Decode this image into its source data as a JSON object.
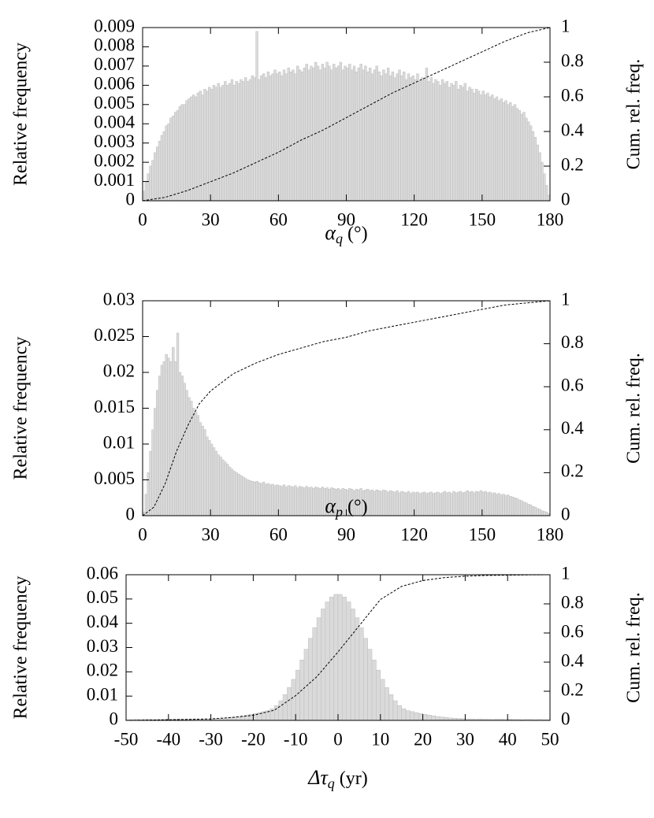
{
  "chart_data": [
    {
      "type": "histogram",
      "ylabel": "Relative frequency",
      "y2label": "Cum. rel. freq.",
      "xlabel": {
        "symbol": "α",
        "sub": "q",
        "unit": "(°)"
      },
      "color": "#dadada",
      "edge_color": "#bdbdbd",
      "line_color": "#000000",
      "xlim": [
        0,
        180
      ],
      "xticks": [
        0,
        30,
        60,
        90,
        120,
        150,
        180
      ],
      "ylim": [
        0,
        0.009
      ],
      "yticks": [
        0,
        0.001,
        0.002,
        0.003,
        0.004,
        0.005,
        0.006,
        0.007,
        0.008,
        0.009
      ],
      "y2lim": [
        0,
        1
      ],
      "y2ticks": [
        0,
        0.2,
        0.4,
        0.6,
        0.8,
        1
      ],
      "bins": [
        0,
        1,
        2,
        3,
        4,
        5,
        6,
        7,
        8,
        9,
        10,
        11,
        12,
        13,
        14,
        15,
        16,
        17,
        18,
        19,
        20,
        21,
        22,
        23,
        24,
        25,
        26,
        27,
        28,
        29,
        30,
        31,
        32,
        33,
        34,
        35,
        36,
        37,
        38,
        39,
        40,
        41,
        42,
        43,
        44,
        45,
        46,
        47,
        48,
        49,
        50,
        51,
        52,
        53,
        54,
        55,
        56,
        57,
        58,
        59,
        60,
        61,
        62,
        63,
        64,
        65,
        66,
        67,
        68,
        69,
        70,
        71,
        72,
        73,
        74,
        75,
        76,
        77,
        78,
        79,
        80,
        81,
        82,
        83,
        84,
        85,
        86,
        87,
        88,
        89,
        90,
        91,
        92,
        93,
        94,
        95,
        96,
        97,
        98,
        99,
        100,
        101,
        102,
        103,
        104,
        105,
        106,
        107,
        108,
        109,
        110,
        111,
        112,
        113,
        114,
        115,
        116,
        117,
        118,
        119,
        120,
        121,
        122,
        123,
        124,
        125,
        126,
        127,
        128,
        129,
        130,
        131,
        132,
        133,
        134,
        135,
        136,
        137,
        138,
        139,
        140,
        141,
        142,
        143,
        144,
        145,
        146,
        147,
        148,
        149,
        150,
        151,
        152,
        153,
        154,
        155,
        156,
        157,
        158,
        159,
        160,
        161,
        162,
        163,
        164,
        165,
        166,
        167,
        168,
        169,
        170,
        171,
        172,
        173,
        174,
        175,
        176,
        177,
        178,
        179,
        180
      ],
      "values": [
        0.0005,
        0.001,
        0.0014,
        0.0018,
        0.0021,
        0.0025,
        0.0028,
        0.0031,
        0.0034,
        0.0036,
        0.0039,
        0.004,
        0.0043,
        0.0044,
        0.0046,
        0.0047,
        0.0049,
        0.005,
        0.005,
        0.0052,
        0.0053,
        0.0054,
        0.0055,
        0.0054,
        0.0056,
        0.0057,
        0.0055,
        0.0058,
        0.0057,
        0.0059,
        0.0058,
        0.006,
        0.0059,
        0.0061,
        0.0059,
        0.006,
        0.0062,
        0.006,
        0.0061,
        0.0063,
        0.006,
        0.0062,
        0.0061,
        0.0063,
        0.0062,
        0.0064,
        0.0062,
        0.0063,
        0.0065,
        0.0064,
        0.0088,
        0.0063,
        0.0065,
        0.0066,
        0.0064,
        0.0067,
        0.0065,
        0.0066,
        0.0068,
        0.0066,
        0.0067,
        0.0065,
        0.0068,
        0.0066,
        0.0069,
        0.0067,
        0.0068,
        0.0066,
        0.007,
        0.0068,
        0.0067,
        0.0069,
        0.0071,
        0.0068,
        0.007,
        0.0069,
        0.0072,
        0.007,
        0.0068,
        0.0071,
        0.0069,
        0.0072,
        0.007,
        0.0068,
        0.0071,
        0.0069,
        0.007,
        0.0072,
        0.0068,
        0.007,
        0.0069,
        0.0071,
        0.0068,
        0.007,
        0.0067,
        0.0069,
        0.0071,
        0.0068,
        0.007,
        0.0067,
        0.0069,
        0.0066,
        0.0068,
        0.007,
        0.0067,
        0.0065,
        0.0068,
        0.0066,
        0.0069,
        0.0065,
        0.0067,
        0.0064,
        0.0066,
        0.0068,
        0.0065,
        0.0067,
        0.0063,
        0.0066,
        0.0064,
        0.0065,
        0.0063,
        0.0066,
        0.0062,
        0.0064,
        0.0063,
        0.0069,
        0.0062,
        0.0064,
        0.0061,
        0.0063,
        0.0062,
        0.006,
        0.0063,
        0.0061,
        0.0062,
        0.0059,
        0.0061,
        0.006,
        0.0062,
        0.0058,
        0.006,
        0.0059,
        0.0061,
        0.0057,
        0.0059,
        0.0058,
        0.0056,
        0.0058,
        0.0057,
        0.0055,
        0.0057,
        0.0055,
        0.0056,
        0.0054,
        0.0055,
        0.0053,
        0.0054,
        0.0052,
        0.0053,
        0.0051,
        0.0052,
        0.005,
        0.0051,
        0.0049,
        0.005,
        0.0048,
        0.0047,
        0.0045,
        0.0046,
        0.0043,
        0.0041,
        0.0039,
        0.0036,
        0.0033,
        0.0029,
        0.0025,
        0.002,
        0.0014,
        0.0008,
        0.0003
      ],
      "cumulative": {
        "axis": "y2",
        "x": [
          0,
          10,
          20,
          30,
          40,
          50,
          60,
          70,
          80,
          90,
          100,
          110,
          120,
          130,
          140,
          150,
          160,
          170,
          180
        ],
        "values": [
          0,
          0.02,
          0.06,
          0.11,
          0.16,
          0.22,
          0.28,
          0.35,
          0.41,
          0.48,
          0.55,
          0.62,
          0.68,
          0.74,
          0.8,
          0.86,
          0.92,
          0.97,
          1
        ]
      }
    },
    {
      "type": "histogram",
      "ylabel": "Relative frequency",
      "y2label": "Cum. rel. freq.",
      "xlabel": {
        "symbol": "α",
        "sub": "p",
        "unit": "(°)"
      },
      "color": "#dadada",
      "edge_color": "#bdbdbd",
      "line_color": "#000000",
      "xlim": [
        0,
        180
      ],
      "xticks": [
        0,
        30,
        60,
        90,
        120,
        150,
        180
      ],
      "ylim": [
        0,
        0.03
      ],
      "yticks": [
        0,
        0.005,
        0.01,
        0.015,
        0.02,
        0.025,
        0.03
      ],
      "y2lim": [
        0,
        1
      ],
      "y2ticks": [
        0,
        0.2,
        0.4,
        0.6,
        0.8,
        1
      ],
      "bins": [
        0,
        1,
        2,
        3,
        4,
        5,
        6,
        7,
        8,
        9,
        10,
        11,
        12,
        13,
        14,
        15,
        16,
        17,
        18,
        19,
        20,
        21,
        22,
        23,
        24,
        25,
        26,
        27,
        28,
        29,
        30,
        31,
        32,
        33,
        34,
        35,
        36,
        37,
        38,
        39,
        40,
        41,
        42,
        43,
        44,
        45,
        46,
        47,
        48,
        49,
        50,
        51,
        52,
        53,
        54,
        55,
        56,
        57,
        58,
        59,
        60,
        61,
        62,
        63,
        64,
        65,
        66,
        67,
        68,
        69,
        70,
        71,
        72,
        73,
        74,
        75,
        76,
        77,
        78,
        79,
        80,
        81,
        82,
        83,
        84,
        85,
        86,
        87,
        88,
        89,
        90,
        91,
        92,
        93,
        94,
        95,
        96,
        97,
        98,
        99,
        100,
        101,
        102,
        103,
        104,
        105,
        106,
        107,
        108,
        109,
        110,
        111,
        112,
        113,
        114,
        115,
        116,
        117,
        118,
        119,
        120,
        121,
        122,
        123,
        124,
        125,
        126,
        127,
        128,
        129,
        130,
        131,
        132,
        133,
        134,
        135,
        136,
        137,
        138,
        139,
        140,
        141,
        142,
        143,
        144,
        145,
        146,
        147,
        148,
        149,
        150,
        151,
        152,
        153,
        154,
        155,
        156,
        157,
        158,
        159,
        160,
        161,
        162,
        163,
        164,
        165,
        166,
        167,
        168,
        169,
        170,
        171,
        172,
        173,
        174,
        175,
        176,
        177,
        178,
        179,
        180
      ],
      "values": [
        0.0005,
        0.003,
        0.006,
        0.009,
        0.012,
        0.015,
        0.0175,
        0.0195,
        0.021,
        0.0215,
        0.0225,
        0.022,
        0.0215,
        0.0235,
        0.0215,
        0.0255,
        0.02,
        0.0195,
        0.0185,
        0.0175,
        0.0165,
        0.016,
        0.015,
        0.0145,
        0.014,
        0.013,
        0.0125,
        0.012,
        0.011,
        0.0105,
        0.01,
        0.0095,
        0.009,
        0.0085,
        0.0082,
        0.0078,
        0.0075,
        0.0072,
        0.0068,
        0.0065,
        0.0062,
        0.006,
        0.0058,
        0.0056,
        0.0054,
        0.0052,
        0.005,
        0.0049,
        0.0048,
        0.0047,
        0.0048,
        0.0046,
        0.0045,
        0.0047,
        0.0044,
        0.0045,
        0.0043,
        0.0044,
        0.0042,
        0.0043,
        0.0042,
        0.0041,
        0.0043,
        0.004,
        0.0042,
        0.0041,
        0.004,
        0.0042,
        0.0039,
        0.0041,
        0.004,
        0.0039,
        0.0041,
        0.0039,
        0.004,
        0.0038,
        0.004,
        0.0039,
        0.0038,
        0.004,
        0.0038,
        0.0039,
        0.0037,
        0.0039,
        0.0038,
        0.0037,
        0.0038,
        0.0036,
        0.0038,
        0.0037,
        0.0036,
        0.0038,
        0.0037,
        0.0035,
        0.0037,
        0.0036,
        0.0038,
        0.0035,
        0.0036,
        0.0037,
        0.0035,
        0.0036,
        0.0034,
        0.0036,
        0.0035,
        0.0034,
        0.0036,
        0.0035,
        0.0033,
        0.0035,
        0.0034,
        0.0033,
        0.0035,
        0.0032,
        0.0034,
        0.0033,
        0.0032,
        0.0034,
        0.0031,
        0.0033,
        0.0032,
        0.0033,
        0.0031,
        0.0032,
        0.0033,
        0.0031,
        0.0032,
        0.0033,
        0.0031,
        0.0032,
        0.0033,
        0.0031,
        0.0032,
        0.0034,
        0.0032,
        0.0033,
        0.0031,
        0.0034,
        0.0032,
        0.0033,
        0.0034,
        0.0032,
        0.0033,
        0.0035,
        0.0033,
        0.0034,
        0.0032,
        0.0034,
        0.0033,
        0.0035,
        0.0033,
        0.0034,
        0.0032,
        0.0033,
        0.0031,
        0.0032,
        0.003,
        0.0031,
        0.0029,
        0.003,
        0.0028,
        0.0029,
        0.0027,
        0.0026,
        0.0025,
        0.0024,
        0.0022,
        0.0021,
        0.0019,
        0.0018,
        0.0016,
        0.0015,
        0.0013,
        0.0012,
        0.001,
        0.0009,
        0.0007,
        0.0006,
        0.0005,
        0.0003
      ],
      "cumulative": {
        "axis": "y2",
        "x": [
          0,
          5,
          10,
          15,
          20,
          25,
          30,
          40,
          50,
          60,
          70,
          80,
          90,
          100,
          110,
          120,
          130,
          140,
          150,
          160,
          170,
          180
        ],
        "values": [
          0,
          0.04,
          0.15,
          0.3,
          0.42,
          0.52,
          0.58,
          0.66,
          0.71,
          0.75,
          0.78,
          0.81,
          0.83,
          0.86,
          0.88,
          0.9,
          0.92,
          0.94,
          0.96,
          0.98,
          0.99,
          1
        ]
      }
    },
    {
      "type": "histogram",
      "ylabel": "Relative frequency",
      "y2label": "Cum. rel. freq.",
      "xlabel": {
        "symbol": "Δτ",
        "sub": "q",
        "unit": "(yr)"
      },
      "color": "#dadada",
      "edge_color": "#bdbdbd",
      "line_color": "#000000",
      "xlim": [
        -50,
        50
      ],
      "xticks": [
        -50,
        -40,
        -30,
        -20,
        -10,
        0,
        10,
        20,
        30,
        40,
        50
      ],
      "ylim": [
        0,
        0.06
      ],
      "yticks": [
        0,
        0.01,
        0.02,
        0.03,
        0.04,
        0.05,
        0.06
      ],
      "y2lim": [
        0,
        1
      ],
      "y2ticks": [
        0,
        0.2,
        0.4,
        0.6,
        0.8,
        1
      ],
      "bins": [
        -50,
        -49,
        -48,
        -47,
        -46,
        -45,
        -44,
        -43,
        -42,
        -41,
        -40,
        -39,
        -38,
        -37,
        -36,
        -35,
        -34,
        -33,
        -32,
        -31,
        -30,
        -29,
        -28,
        -27,
        -26,
        -25,
        -24,
        -23,
        -22,
        -21,
        -20,
        -19,
        -18,
        -17,
        -16,
        -15,
        -14,
        -13,
        -12,
        -11,
        -10,
        -9,
        -8,
        -7,
        -6,
        -5,
        -4,
        -3,
        -2,
        -1,
        0,
        1,
        2,
        3,
        4,
        5,
        6,
        7,
        8,
        9,
        10,
        11,
        12,
        13,
        14,
        15,
        16,
        17,
        18,
        19,
        20,
        21,
        22,
        23,
        24,
        25,
        26,
        27,
        28,
        29,
        30,
        31,
        32,
        33,
        34,
        35,
        36,
        37,
        38,
        39,
        40,
        41,
        42,
        43,
        44,
        45,
        46,
        47,
        48,
        49,
        50
      ],
      "values": [
        0.0003,
        0.0003,
        0.0004,
        0.0003,
        0.0004,
        0.0004,
        0.0003,
        0.0004,
        0.0004,
        0.0005,
        0.0004,
        0.0005,
        0.0005,
        0.0004,
        0.0005,
        0.0005,
        0.0006,
        0.0005,
        0.0006,
        0.0006,
        0.0007,
        0.0008,
        0.0009,
        0.001,
        0.0012,
        0.0014,
        0.0016,
        0.0019,
        0.0022,
        0.0025,
        0.0028,
        0.0032,
        0.0036,
        0.004,
        0.0048,
        0.0061,
        0.0081,
        0.0106,
        0.0135,
        0.0169,
        0.0207,
        0.0249,
        0.0293,
        0.0338,
        0.0382,
        0.0423,
        0.0459,
        0.0488,
        0.0508,
        0.0519,
        0.0519,
        0.0508,
        0.0488,
        0.0459,
        0.0423,
        0.0382,
        0.0338,
        0.0293,
        0.0249,
        0.0207,
        0.0169,
        0.0135,
        0.0106,
        0.0081,
        0.0061,
        0.0048,
        0.004,
        0.0036,
        0.0032,
        0.0028,
        0.0025,
        0.0022,
        0.0019,
        0.0016,
        0.0014,
        0.0012,
        0.001,
        0.0009,
        0.0008,
        0.0007,
        0.0006,
        0.0006,
        0.0005,
        0.0006,
        0.0005,
        0.0005,
        0.0004,
        0.0005,
        0.0005,
        0.0004,
        0.0005,
        0.0004,
        0.0004,
        0.0003,
        0.0004,
        0.0004,
        0.0003,
        0.0004,
        0.0003,
        0.0003
      ],
      "cumulative": {
        "axis": "y2",
        "x": [
          -50,
          -45,
          -40,
          -35,
          -30,
          -25,
          -20,
          -15,
          -10,
          -5,
          0,
          5,
          10,
          15,
          20,
          25,
          30,
          35,
          40,
          45,
          50
        ],
        "values": [
          0,
          0.002,
          0.004,
          0.007,
          0.01,
          0.02,
          0.035,
          0.07,
          0.17,
          0.3,
          0.47,
          0.65,
          0.83,
          0.92,
          0.96,
          0.98,
          0.99,
          0.995,
          0.997,
          0.999,
          1
        ]
      }
    }
  ]
}
